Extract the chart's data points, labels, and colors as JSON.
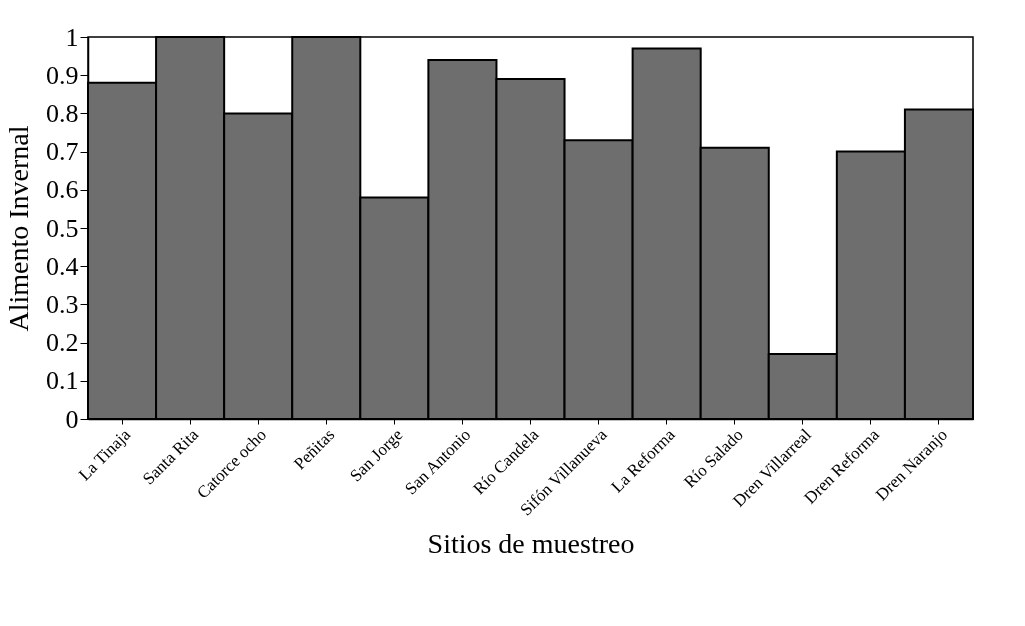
{
  "chart_data": {
    "type": "bar",
    "xlabel": "Sitios de muestreo",
    "ylabel": "Alimento Invernal",
    "categories": [
      "La Tinaja",
      "Santa Rita",
      "Catorce ocho",
      "Peñitas",
      "San Jorge",
      "San Antonio",
      "Río Candela",
      "Sifón Villanueva",
      "La Reforma",
      "Río Salado",
      "Dren Villarreal",
      "Dren Reforma",
      "Dren Naranjo"
    ],
    "values": [
      0.88,
      1.0,
      0.8,
      1.0,
      0.58,
      0.94,
      0.89,
      0.73,
      0.97,
      0.71,
      0.17,
      0.7,
      0.81
    ],
    "color": "#6e6e6e",
    "ylim": [
      0,
      1
    ],
    "yticks": [
      0,
      0.1,
      0.2,
      0.3,
      0.4,
      0.5,
      0.6,
      0.7,
      0.8,
      0.9,
      1
    ],
    "grid": false
  }
}
